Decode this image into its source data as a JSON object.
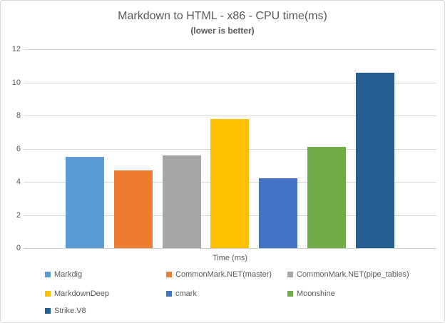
{
  "chart_data": {
    "type": "bar",
    "title": "Markdown to HTML - x86 - CPU time(ms)",
    "subtitle": "(lower is better)",
    "xlabel": "Time (ms)",
    "ylabel": "",
    "ylim": [
      0,
      12
    ],
    "yticks": [
      0,
      2,
      4,
      6,
      8,
      10,
      12
    ],
    "grid": true,
    "legend_position": "bottom",
    "categories": [
      "Markdig",
      "CommonMark.NET(master)",
      "CommonMark.NET(pipe_tables)",
      "MarkdownDeep",
      "cmark",
      "Moonshine",
      "Strike.V8"
    ],
    "values": [
      5.5,
      4.7,
      5.6,
      7.8,
      4.2,
      6.1,
      10.6
    ],
    "colors": [
      "#5B9BD5",
      "#ED7D31",
      "#A5A5A5",
      "#FFC000",
      "#4472C4",
      "#70AD47",
      "#255E91"
    ],
    "gridline_color": "#d9d9d9",
    "text_color": "#595959"
  }
}
